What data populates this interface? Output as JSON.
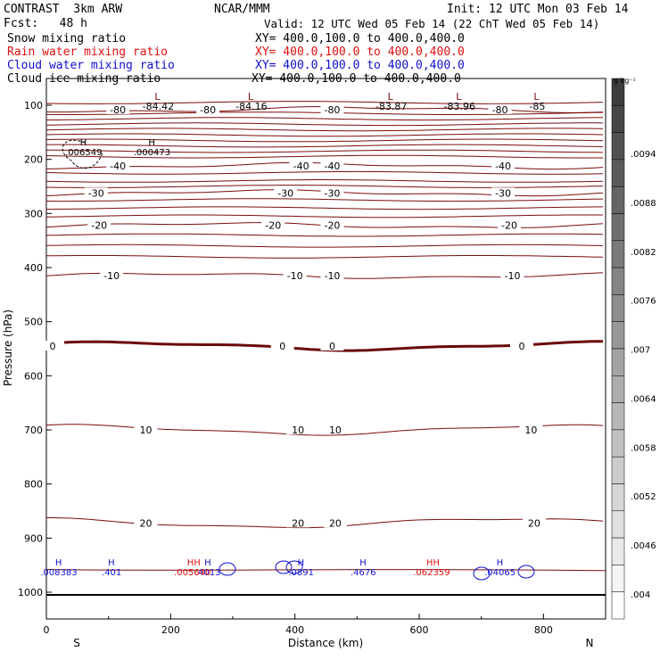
{
  "header": {
    "line1_left": "CONTRAST  3km ARW",
    "line1_center": "NCAR/MMM",
    "line1_right": "Init: 12 UTC Mon 03 Feb 14",
    "line2_left": "Fcst:   48 h",
    "line2_right": "Valid: 12 UTC Wed 05 Feb 14 (22 ChT Wed 05 Feb 14)"
  },
  "fields": [
    {
      "label": "Snow mixing ratio",
      "xy": "XY= 400.0,100.0 to 400.0,400.0",
      "color": "#000000"
    },
    {
      "label": "Rain water mixing ratio",
      "xy": "XY= 400.0,100.0 to 400.0,400.0",
      "color": "#e01010"
    },
    {
      "label": "Cloud water mixing ratio",
      "xy": "XY= 400.0,100.0 to 400.0,400.0",
      "color": "#1010d0"
    },
    {
      "label": "Cloud ice mixing ratio",
      "xy": "XY= 400.0,100.0 to 400.0,400.0",
      "color": "#000000"
    }
  ],
  "chart_data": {
    "type": "contour",
    "xlabel": "Distance (km)",
    "ylabel": "Pressure (hPa)",
    "xlim": [
      0,
      900
    ],
    "ylim": [
      1050,
      60
    ],
    "x_ticks": [
      0,
      200,
      400,
      600,
      800
    ],
    "y_ticks": [
      100,
      200,
      300,
      400,
      500,
      600,
      700,
      800,
      900,
      1000
    ],
    "x_end_labels": {
      "left": "S",
      "right": "N"
    },
    "temperature_contours": [
      {
        "value": -80,
        "p": 108,
        "labels": [
          {
            "x": 115,
            "text": "-80"
          },
          {
            "x": 260,
            "text": "-80"
          },
          {
            "x": 460,
            "text": "-80"
          },
          {
            "x": 730,
            "text": "-80"
          }
        ]
      },
      {
        "value": -40,
        "p": 212,
        "labels": [
          {
            "x": 115,
            "text": "-40"
          },
          {
            "x": 410,
            "text": "-40"
          },
          {
            "x": 460,
            "text": "-40"
          },
          {
            "x": 735,
            "text": "-40"
          }
        ]
      },
      {
        "value": -30,
        "p": 262,
        "labels": [
          {
            "x": 80,
            "text": "-30"
          },
          {
            "x": 385,
            "text": "-30"
          },
          {
            "x": 460,
            "text": "-30"
          },
          {
            "x": 735,
            "text": "-30"
          }
        ]
      },
      {
        "value": -20,
        "p": 322,
        "labels": [
          {
            "x": 85,
            "text": "-20"
          },
          {
            "x": 365,
            "text": "-20"
          },
          {
            "x": 460,
            "text": "-20"
          },
          {
            "x": 745,
            "text": "-20"
          }
        ]
      },
      {
        "value": -10,
        "p": 415,
        "labels": [
          {
            "x": 105,
            "text": "-10"
          },
          {
            "x": 400,
            "text": "-10"
          },
          {
            "x": 460,
            "text": "-10"
          },
          {
            "x": 750,
            "text": "-10"
          }
        ]
      },
      {
        "value": 0,
        "p": 545,
        "labels": [
          {
            "x": 10,
            "text": "0"
          },
          {
            "x": 380,
            "text": "0"
          },
          {
            "x": 460,
            "text": "0"
          },
          {
            "x": 765,
            "text": "0"
          }
        ]
      },
      {
        "value": 10,
        "p": 700,
        "labels": [
          {
            "x": 160,
            "text": "10"
          },
          {
            "x": 405,
            "text": "10"
          },
          {
            "x": 465,
            "text": "10"
          },
          {
            "x": 780,
            "text": "10"
          }
        ]
      },
      {
        "value": 20,
        "p": 872,
        "labels": [
          {
            "x": 160,
            "text": "20"
          },
          {
            "x": 405,
            "text": "20"
          },
          {
            "x": 465,
            "text": "20"
          },
          {
            "x": 785,
            "text": "20"
          }
        ]
      }
    ],
    "lows": [
      {
        "x": 180,
        "text": "-84.42"
      },
      {
        "x": 330,
        "text": "-84.16"
      },
      {
        "x": 555,
        "text": "-83.87"
      },
      {
        "x": 665,
        "text": "-83.96"
      },
      {
        "x": 790,
        "text": "-85"
      }
    ],
    "highs_ice": [
      {
        "x": 60,
        "text": ".006549"
      },
      {
        "x": 170,
        "text": ".000473"
      }
    ],
    "highs_cloud_water": [
      {
        "x": 20,
        "text": ".008383"
      },
      {
        "x": 105,
        "text": ".401"
      },
      {
        "x": 260,
        "text": ".4013"
      },
      {
        "x": 410,
        "text": ".0891"
      },
      {
        "x": 510,
        "text": ".4676"
      },
      {
        "x": 730,
        "text": ".04065"
      }
    ],
    "highs_rain": [
      {
        "x": 235,
        "text": ".005640"
      },
      {
        "x": 620,
        "text": ".062359"
      }
    ],
    "colorbar": {
      "unit": "g kg⁻¹",
      "ticks": [
        ".0094",
        ".0088",
        ".0082",
        ".0076",
        ".007",
        ".0064",
        ".0058",
        ".0052",
        ".0046",
        ".004"
      ]
    }
  }
}
